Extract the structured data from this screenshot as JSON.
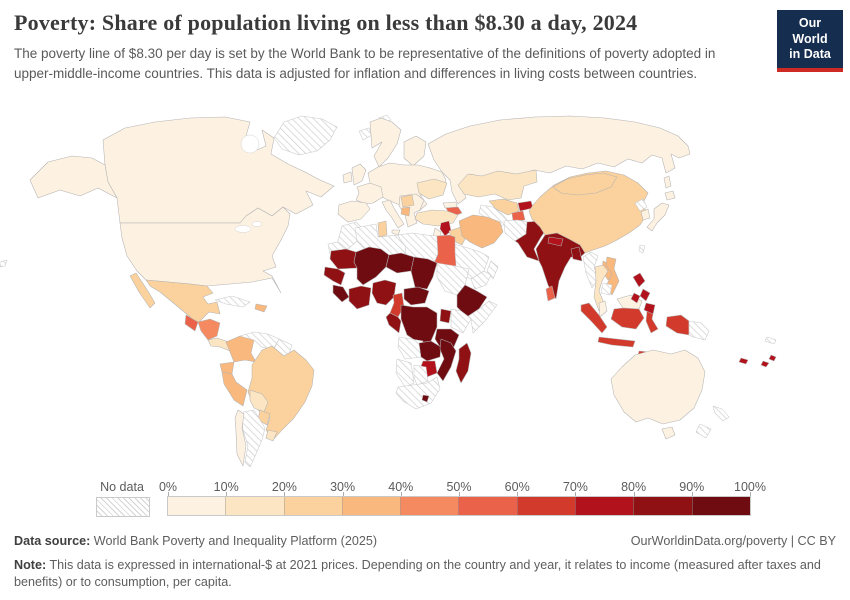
{
  "header": {
    "title": "Poverty: Share of population living on less than $8.30 a day, 2024",
    "subtitle": "The poverty line of $8.30 per day is set by the World Bank to be representative of the definitions of poverty adopted in upper-middle-income countries. This data is adjusted for inflation and differences in living costs between countries.",
    "logo": {
      "line1": "Our World",
      "line2": "in Data",
      "background": "#152d4e",
      "accent": "#cc2a23"
    }
  },
  "legend": {
    "no_data_label": "No data",
    "ticks": [
      "0%",
      "10%",
      "20%",
      "30%",
      "40%",
      "50%",
      "60%",
      "70%",
      "80%",
      "90%",
      "100%"
    ],
    "bins": [
      {
        "label": "0-10%",
        "color": "#fdf1e1"
      },
      {
        "label": "10-20%",
        "color": "#fce5c2"
      },
      {
        "label": "20-30%",
        "color": "#fbd29d"
      },
      {
        "label": "30-40%",
        "color": "#f9b87d"
      },
      {
        "label": "40-50%",
        "color": "#f58a60"
      },
      {
        "label": "50-60%",
        "color": "#ea6249"
      },
      {
        "label": "60-70%",
        "color": "#d23a2c"
      },
      {
        "label": "70-80%",
        "color": "#b2121b"
      },
      {
        "label": "80-90%",
        "color": "#8f1114"
      },
      {
        "label": "90-100%",
        "color": "#6e0c12"
      }
    ]
  },
  "chart_data": {
    "type": "heatmap",
    "subtype": "choropleth world map",
    "title": "Poverty: Share of population living on less than $8.30 a day, 2024",
    "unit": "share of population (%)",
    "year": "2024",
    "scale_bins": [
      "0-10%",
      "10-20%",
      "20-30%",
      "30-40%",
      "40-50%",
      "50-60%",
      "60-70%",
      "70-80%",
      "80-90%",
      "90-100%"
    ],
    "no_data_style": "hatched",
    "legend_position": "bottom",
    "regions": {
      "canada": "0-10%",
      "united-states": "0-10%",
      "alaska": "0-10%",
      "greenland": "no-data",
      "iceland": "no-data",
      "mexico": "20-30%",
      "guatemala": "50-60%",
      "honduras-nicaragua": "40-50%",
      "costa-rica-panama": "10-20%",
      "cuba": "no-data",
      "hispaniola": "30-40%",
      "colombia": "30-40%",
      "venezuela": "no-data",
      "guyanas": "no-data",
      "ecuador": "30-40%",
      "peru": "30-40%",
      "brazil": "20-30%",
      "bolivia": "10-20%",
      "paraguay": "20-30%",
      "uruguay": "10-20%",
      "argentina": "no-data",
      "chile": "0-10%",
      "scandinavia": "0-10%",
      "finland": "0-10%",
      "denmark": "0-10%",
      "united-kingdom": "0-10%",
      "ireland": "0-10%",
      "iberia": "0-10%",
      "france": "0-10%",
      "central-europe": "0-10%",
      "italy": "0-10%",
      "sicily": "0-10%",
      "balkans-greece": "0-10%",
      "serbia-bosnia": "20-30%",
      "albania-north-macedonia": "30-40%",
      "ukraine": "10-20%",
      "svalbard": "no-data",
      "turkey": "10-20%",
      "georgia": "0-10%",
      "azerbaijan-armenia": "50-60%",
      "syria": "70-80%",
      "israel-jordan": "0-10%",
      "iraq": "20-30%",
      "iran": "30-40%",
      "saudi-arabia": "no-data",
      "yemen": "no-data",
      "oman": "no-data",
      "morocco": "no-data",
      "western-sahara": "no-data",
      "algeria": "no-data",
      "tunisia": "20-30%",
      "libya": "no-data",
      "egypt": "50-60%",
      "mauritania": "80-90%",
      "mali": "90-100%",
      "niger": "90-100%",
      "chad": "90-100%",
      "sudan": "no-data",
      "senegal-guinea": "80-90%",
      "sierra-leone-liberia": "90-100%",
      "cote-divoire-ghana": "80-90%",
      "nigeria": "80-90%",
      "cameroon": "60-70%",
      "central-african-republic": "90-100%",
      "ethiopia": "90-100%",
      "somalia": "no-data",
      "kenya": "no-data",
      "uganda": "80-90%",
      "dr-congo": "90-100%",
      "gabon-congo": "80-90%",
      "tanzania": "90-100%",
      "angola": "no-data",
      "zambia": "90-100%",
      "malawi-mozambique": "90-100%",
      "zimbabwe": "70-80%",
      "namibia": "no-data",
      "botswana": "no-data",
      "south-africa": "no-data",
      "lesotho": "90-100%",
      "madagascar": "80-90%",
      "russia": "0-10%",
      "sakhalin": "0-10%",
      "kazakhstan": "10-20%",
      "uzbekistan": "20-30%",
      "turkmenistan": "no-data",
      "kyrgyzstan": "70-80%",
      "tajikistan": "50-60%",
      "afghanistan": "no-data",
      "pakistan": "80-90%",
      "india": "80-90%",
      "nepal": "70-80%",
      "bangladesh": "80-90%",
      "sri-lanka": "50-60%",
      "china": "20-30%",
      "mongolia": "20-30%",
      "north-korea": "no-data",
      "south-korea": "0-10%",
      "japan": "0-10%",
      "hokkaido": "0-10%",
      "taiwan": "no-data",
      "myanmar": "no-data",
      "thailand": "10-20%",
      "laos": "30-40%",
      "vietnam": "30-40%",
      "cambodia": "no-data",
      "malaysia": "0-10%",
      "east-malaysia": "0-10%",
      "sumatra": "60-70%",
      "java": "60-70%",
      "kalimantan": "60-70%",
      "sulawesi": "60-70%",
      "lesser-sunda": "60-70%",
      "papua-indonesia": "60-70%",
      "papua-new-guinea": "no-data",
      "philippines": "70-80%",
      "australia": "0-10%",
      "tasmania": "0-10%",
      "new-zealand": "no-data",
      "new-caledonia": "no-data",
      "solomon-islands": "70-80%",
      "vanuatu-fiji": "70-80%"
    }
  },
  "footer": {
    "source_label": "Data source:",
    "source": "World Bank Poverty and Inequality Platform (2025)",
    "credit": "OurWorldinData.org/poverty | CC BY",
    "note_label": "Note:",
    "note": "This data is expressed in international-$ at 2021 prices. Depending on the country and year, it relates to income (measured after taxes and benefits) or to consumption, per capita."
  }
}
